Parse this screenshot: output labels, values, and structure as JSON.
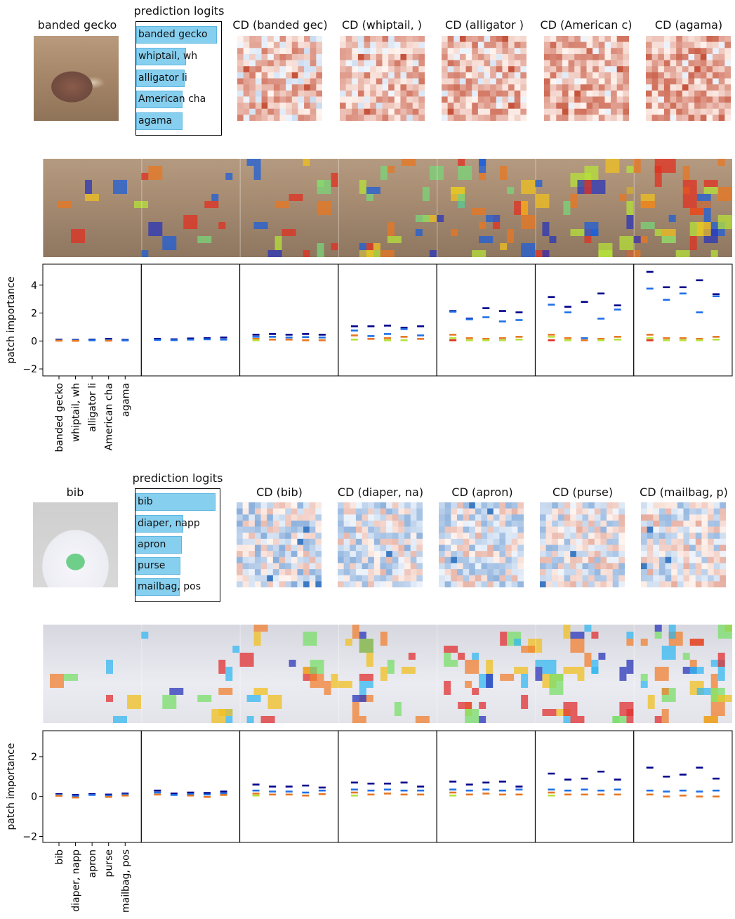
{
  "figures": [
    {
      "id": "gecko",
      "image_title": "banded gecko",
      "logits_title": "prediction logits",
      "logit_labels": [
        "banded gecko",
        "whiptail, wh",
        "alligator li",
        "American cha",
        "agama"
      ],
      "logit_values": [
        1.0,
        0.62,
        0.6,
        0.57,
        0.57
      ],
      "cd_titles": [
        "CD (banded gec)",
        "CD (whiptail, )",
        "CD (alligator )",
        "CD (American c)",
        "CD (agama)"
      ],
      "colors": {
        "photo_tint": "#a7876a"
      }
    },
    {
      "id": "bib",
      "image_title": "bib",
      "logits_title": "prediction logits",
      "logit_labels": [
        "bib",
        "diaper, napp",
        "apron",
        "purse",
        "mailbag, pos"
      ],
      "logit_values": [
        1.0,
        0.6,
        0.58,
        0.56,
        0.55
      ],
      "cd_titles": [
        "CD (bib)",
        "CD (diaper, na)",
        "CD (apron)",
        "CD (purse)",
        "CD (mailbag, p)"
      ],
      "colors": {
        "photo_tint": "#e6e6ee"
      }
    }
  ],
  "chart_data": [
    {
      "type": "scatter",
      "marker": "horizontal-dash",
      "ylabel": "patch importance",
      "ylim": [
        -2.5,
        5.5
      ],
      "yticks": [
        -2,
        0,
        2,
        4
      ],
      "categories": [
        "banded gecko",
        "whiptail, wh",
        "alligator li",
        "American cha",
        "agama"
      ],
      "panels": [
        {
          "groups": [
            [
              0.1,
              0.05,
              0.02
            ],
            [
              0.08,
              0.04,
              0.01
            ],
            [
              0.1,
              0.05
            ],
            [
              0.15,
              0.08,
              0.02
            ],
            [
              0.08,
              0.04
            ]
          ]
        },
        {
          "groups": [
            [
              0.15,
              0.08
            ],
            [
              0.12,
              0.06
            ],
            [
              0.18,
              0.1
            ],
            [
              0.2,
              0.12
            ],
            [
              0.25,
              0.1
            ]
          ]
        },
        {
          "groups": [
            [
              0.45,
              0.3,
              0.15,
              0.05
            ],
            [
              0.5,
              0.3,
              0.1
            ],
            [
              0.45,
              0.25,
              0.1
            ],
            [
              0.5,
              0.28,
              0.05
            ],
            [
              0.45,
              0.25,
              0.05
            ]
          ]
        },
        {
          "groups": [
            [
              1.05,
              0.75,
              0.4,
              0.1
            ],
            [
              1.05,
              0.35,
              0.15
            ],
            [
              1.1,
              0.5,
              0.2,
              0.05
            ],
            [
              0.95,
              0.85,
              0.3,
              0.05
            ],
            [
              1.05,
              0.4,
              0.15
            ]
          ]
        },
        {
          "groups": [
            [
              2.15,
              2.1,
              0.45,
              0.2,
              0.05
            ],
            [
              1.6,
              1.55,
              0.2,
              0.05
            ],
            [
              2.35,
              1.7,
              0.15,
              0.05
            ],
            [
              2.15,
              1.4,
              0.2,
              0.05
            ],
            [
              2.05,
              1.5,
              0.3,
              0.1
            ]
          ]
        },
        {
          "groups": [
            [
              3.15,
              2.6,
              0.45,
              0.3,
              0.05
            ],
            [
              2.45,
              2.05,
              0.2,
              0.05
            ],
            [
              2.8,
              0.2,
              0.05
            ],
            [
              3.4,
              1.6,
              0.15,
              0.05
            ],
            [
              2.55,
              2.25,
              0.3,
              0.1
            ]
          ]
        },
        {
          "groups": [
            [
              4.95,
              3.75,
              0.45,
              0.2,
              0.05
            ],
            [
              3.85,
              2.95,
              0.2,
              0.05
            ],
            [
              3.85,
              3.4,
              0.2,
              0.05
            ],
            [
              4.35,
              2.05,
              0.15,
              0.05
            ],
            [
              3.35,
              3.2,
              0.3,
              0.1
            ]
          ]
        }
      ]
    },
    {
      "type": "scatter",
      "marker": "horizontal-dash",
      "ylabel": "patch importance",
      "ylim": [
        -2.3,
        3.3
      ],
      "yticks": [
        -2,
        0,
        2
      ],
      "categories": [
        "bib",
        "diaper, napp",
        "apron",
        "purse",
        "mailbag, pos"
      ],
      "panels": [
        {
          "groups": [
            [
              0.12,
              0.08,
              0.04
            ],
            [
              0.08,
              0.02,
              -0.05
            ],
            [
              0.12,
              0.08
            ],
            [
              0.1,
              0.05,
              -0.02
            ],
            [
              0.15,
              0.1,
              0.05
            ]
          ]
        },
        {
          "groups": [
            [
              0.3,
              0.2,
              0.1
            ],
            [
              0.15,
              0.08
            ],
            [
              0.2,
              0.12,
              0.05
            ],
            [
              0.18,
              0.1,
              -0.02
            ],
            [
              0.25,
              0.15,
              0.08
            ]
          ]
        },
        {
          "groups": [
            [
              0.6,
              0.3,
              0.15,
              0.05
            ],
            [
              0.5,
              0.25,
              0.1
            ],
            [
              0.5,
              0.25,
              0.1
            ],
            [
              0.55,
              0.2,
              0.05
            ],
            [
              0.45,
              0.3,
              0.12
            ]
          ]
        },
        {
          "groups": [
            [
              0.7,
              0.35,
              0.2,
              0.05
            ],
            [
              0.65,
              0.3,
              0.1
            ],
            [
              0.65,
              0.35,
              0.15
            ],
            [
              0.7,
              0.3,
              0.1
            ],
            [
              0.5,
              0.3,
              0.1
            ]
          ]
        },
        {
          "groups": [
            [
              0.75,
              0.35,
              0.2,
              0.05
            ],
            [
              0.6,
              0.3,
              0.1
            ],
            [
              0.7,
              0.35,
              0.15
            ],
            [
              0.75,
              0.3,
              0.1
            ],
            [
              0.5,
              0.35,
              0.1
            ]
          ]
        },
        {
          "groups": [
            [
              1.15,
              0.35,
              0.2,
              0.05
            ],
            [
              0.85,
              0.3,
              0.1
            ],
            [
              0.9,
              0.35,
              0.1
            ],
            [
              1.25,
              0.3,
              0.1
            ],
            [
              0.85,
              0.35,
              0.1
            ]
          ]
        },
        {
          "groups": [
            [
              1.45,
              0.3,
              0.1
            ],
            [
              1.0,
              0.25,
              0.0
            ],
            [
              1.1,
              0.3,
              0.05
            ],
            [
              1.45,
              0.25,
              0.0
            ],
            [
              0.9,
              0.3,
              0.0
            ]
          ]
        }
      ]
    }
  ]
}
